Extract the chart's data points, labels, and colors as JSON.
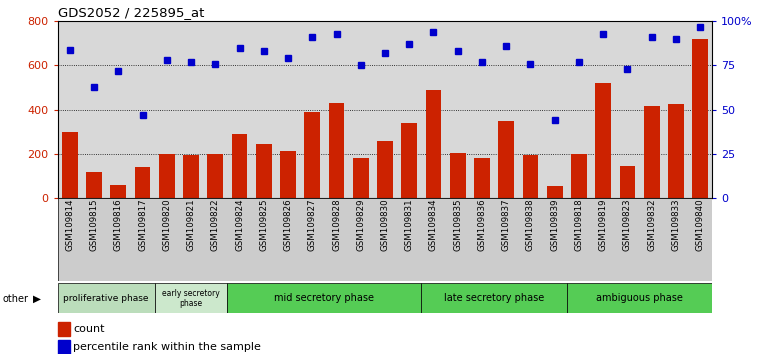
{
  "title": "GDS2052 / 225895_at",
  "samples": [
    "GSM109814",
    "GSM109815",
    "GSM109816",
    "GSM109817",
    "GSM109820",
    "GSM109821",
    "GSM109822",
    "GSM109824",
    "GSM109825",
    "GSM109826",
    "GSM109827",
    "GSM109828",
    "GSM109829",
    "GSM109830",
    "GSM109831",
    "GSM109834",
    "GSM109835",
    "GSM109836",
    "GSM109837",
    "GSM109838",
    "GSM109839",
    "GSM109818",
    "GSM109819",
    "GSM109823",
    "GSM109832",
    "GSM109833",
    "GSM109840"
  ],
  "counts": [
    300,
    120,
    60,
    140,
    200,
    195,
    200,
    290,
    245,
    215,
    390,
    430,
    180,
    260,
    340,
    490,
    205,
    180,
    350,
    195,
    55,
    200,
    520,
    145,
    415,
    425,
    720
  ],
  "percentiles": [
    84,
    63,
    72,
    47,
    78,
    77,
    76,
    85,
    83,
    79,
    91,
    93,
    75,
    82,
    87,
    94,
    83,
    77,
    86,
    76,
    44,
    77,
    93,
    73,
    91,
    90,
    97
  ],
  "bar_color": "#cc2200",
  "dot_color": "#0000cc",
  "left_ylim": [
    0,
    800
  ],
  "right_ylim": [
    0,
    100
  ],
  "left_yticks": [
    0,
    200,
    400,
    600,
    800
  ],
  "right_yticks": [
    0,
    25,
    50,
    75,
    100
  ],
  "right_yticklabels": [
    "0",
    "25",
    "50",
    "75",
    "100%"
  ],
  "phases": [
    {
      "label": "proliferative phase",
      "start": 0,
      "end": 4,
      "color": "#bbddbb"
    },
    {
      "label": "early secretory\nphase",
      "start": 4,
      "end": 7,
      "color": "#ddeedd"
    },
    {
      "label": "mid secretory phase",
      "start": 7,
      "end": 15,
      "color": "#55cc55"
    },
    {
      "label": "late secretory phase",
      "start": 15,
      "end": 21,
      "color": "#55cc55"
    },
    {
      "label": "ambiguous phase",
      "start": 21,
      "end": 27,
      "color": "#55cc55"
    }
  ],
  "legend_count_label": "count",
  "legend_pct_label": "percentile rank within the sample",
  "axis_bg": "#d8d8d8",
  "grid_color": "#000000"
}
